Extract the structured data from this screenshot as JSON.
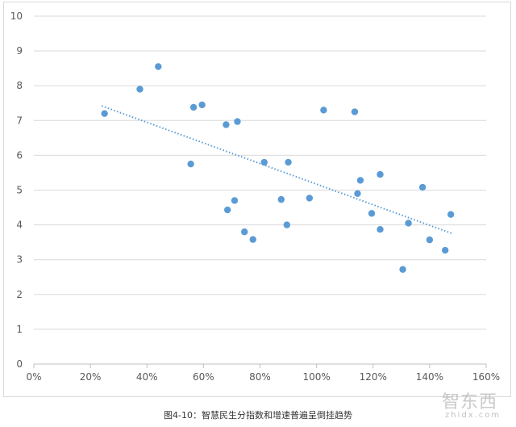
{
  "chart_data": {
    "type": "scatter",
    "x_ticks": [
      "0%",
      "20%",
      "40%",
      "60%",
      "80%",
      "100%",
      "120%",
      "140%",
      "160%"
    ],
    "y_ticks": [
      "0",
      "1",
      "2",
      "3",
      "4",
      "5",
      "6",
      "7",
      "8",
      "9",
      "10"
    ],
    "xlim": [
      0,
      1.6
    ],
    "ylim": [
      0,
      10
    ],
    "grid": "horizontal",
    "legend": "none",
    "point_color": "#5b9bd5",
    "trendline": {
      "style": "dotted",
      "color": "#5b9bd5",
      "x": [
        0.24,
        1.48
      ],
      "y": [
        7.42,
        3.75
      ]
    },
    "points": [
      {
        "x": 0.25,
        "y": 7.2
      },
      {
        "x": 0.375,
        "y": 7.9
      },
      {
        "x": 0.44,
        "y": 8.55
      },
      {
        "x": 0.555,
        "y": 5.75
      },
      {
        "x": 0.565,
        "y": 7.38
      },
      {
        "x": 0.595,
        "y": 7.45
      },
      {
        "x": 0.68,
        "y": 6.88
      },
      {
        "x": 0.685,
        "y": 4.43
      },
      {
        "x": 0.71,
        "y": 4.7
      },
      {
        "x": 0.72,
        "y": 6.97
      },
      {
        "x": 0.745,
        "y": 3.8
      },
      {
        "x": 0.775,
        "y": 3.58
      },
      {
        "x": 0.815,
        "y": 5.8
      },
      {
        "x": 0.875,
        "y": 4.73
      },
      {
        "x": 0.895,
        "y": 4.0
      },
      {
        "x": 0.9,
        "y": 5.8
      },
      {
        "x": 0.975,
        "y": 4.77
      },
      {
        "x": 1.025,
        "y": 7.3
      },
      {
        "x": 1.135,
        "y": 7.25
      },
      {
        "x": 1.145,
        "y": 4.9
      },
      {
        "x": 1.155,
        "y": 5.28
      },
      {
        "x": 1.195,
        "y": 4.33
      },
      {
        "x": 1.225,
        "y": 5.45
      },
      {
        "x": 1.225,
        "y": 3.87
      },
      {
        "x": 1.305,
        "y": 2.72
      },
      {
        "x": 1.325,
        "y": 4.05
      },
      {
        "x": 1.375,
        "y": 5.08
      },
      {
        "x": 1.4,
        "y": 3.57
      },
      {
        "x": 1.455,
        "y": 3.27
      },
      {
        "x": 1.475,
        "y": 4.3
      }
    ]
  },
  "caption": "图4-10：智慧民生分指数和增速普遍呈倒挂趋势",
  "watermark": {
    "brand": "智东西",
    "url": "zhidx.com"
  }
}
